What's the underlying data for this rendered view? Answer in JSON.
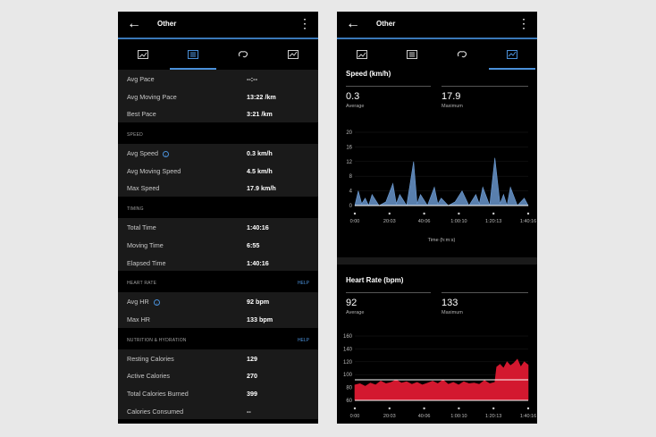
{
  "left": {
    "title": "Other",
    "rows_top": [
      {
        "label": "Avg Pace",
        "value": "--:--"
      },
      {
        "label": "Avg Moving Pace",
        "value": "13:22 /km"
      },
      {
        "label": "Best Pace",
        "value": "3:21 /km"
      }
    ],
    "speed": {
      "header": "SPEED",
      "rows": [
        {
          "label": "Avg Speed",
          "value": "0.3 km/h"
        },
        {
          "label": "Avg Moving Speed",
          "value": "4.5 km/h"
        },
        {
          "label": "Max Speed",
          "value": "17.9 km/h"
        }
      ]
    },
    "timing": {
      "header": "TIMING",
      "rows": [
        {
          "label": "Total Time",
          "value": "1:40:16"
        },
        {
          "label": "Moving Time",
          "value": "6:55"
        },
        {
          "label": "Elapsed Time",
          "value": "1:40:16"
        }
      ]
    },
    "heart": {
      "header": "HEART RATE",
      "help": "HELP",
      "rows": [
        {
          "label": "Avg HR",
          "value": "92 bpm"
        },
        {
          "label": "Max HR",
          "value": "133 bpm"
        }
      ]
    },
    "nutrition": {
      "header": "NUTRITION & HYDRATION",
      "help": "HELP",
      "rows": [
        {
          "label": "Resting Calories",
          "value": "129"
        },
        {
          "label": "Active Calories",
          "value": "270"
        },
        {
          "label": "Total Calories Burned",
          "value": "399"
        },
        {
          "label": "Calories Consumed",
          "value": "--"
        }
      ]
    }
  },
  "right": {
    "title": "Other",
    "speed_chart": {
      "title": "Speed (km/h)",
      "avg_value": "0.3",
      "avg_label": "Average",
      "max_value": "17.9",
      "max_label": "Maximum"
    },
    "hr_chart": {
      "title": "Heart Rate (bpm)",
      "avg_value": "92",
      "avg_label": "Average",
      "max_value": "133",
      "max_label": "Maximum"
    }
  },
  "colors": {
    "accent": "#4a90d9",
    "speed_series": "#6f9fd8",
    "hr_series": "#d3182f"
  },
  "chart_data": [
    {
      "type": "area",
      "title": "Speed (km/h)",
      "xlabel": "Time (h:m:s)",
      "x_ticks": [
        "0:00",
        "20:03",
        "40:06",
        "1:00:10",
        "1:20:13",
        "1:40:16"
      ],
      "y_ticks": [
        0,
        4,
        8,
        12,
        16,
        20
      ],
      "ylim": [
        0,
        20
      ],
      "xlim_min": [
        0,
        100.27
      ],
      "series": [
        {
          "x": [
            0,
            2,
            4,
            6,
            8,
            10,
            14,
            18,
            22,
            24,
            26,
            30,
            34,
            36,
            38,
            42,
            46,
            48,
            50,
            54,
            58,
            62,
            66,
            70,
            72,
            74,
            78,
            81,
            84,
            86,
            88,
            90,
            94,
            98,
            100.27
          ],
          "values": [
            0,
            4,
            0.5,
            2,
            0,
            3,
            0,
            1,
            6,
            0.5,
            3,
            0,
            12,
            0.5,
            3,
            0,
            5,
            0.5,
            2,
            0,
            1,
            4,
            0,
            3,
            0.5,
            5,
            0,
            13,
            0.5,
            3,
            0,
            5,
            0,
            2,
            0
          ]
        }
      ]
    },
    {
      "type": "area",
      "title": "Heart Rate (bpm)",
      "x_ticks": [
        "0:00",
        "20:03",
        "40:06",
        "1:00:10",
        "1:20:13",
        "1:40:16"
      ],
      "y_ticks": [
        60,
        80,
        100,
        120,
        140,
        160
      ],
      "ylim": [
        60,
        160
      ],
      "average_line": 92,
      "series": [
        {
          "x": [
            0,
            3,
            6,
            9,
            12,
            15,
            18,
            21,
            24,
            27,
            30,
            33,
            36,
            39,
            42,
            45,
            48,
            51,
            54,
            57,
            60,
            63,
            66,
            69,
            72,
            75,
            78,
            81,
            82,
            84,
            86,
            88,
            90,
            92,
            94,
            96,
            98,
            100.27
          ],
          "values": [
            84,
            86,
            82,
            87,
            84,
            90,
            86,
            88,
            92,
            87,
            89,
            85,
            88,
            84,
            87,
            90,
            86,
            92,
            85,
            88,
            84,
            89,
            86,
            87,
            85,
            91,
            86,
            88,
            112,
            116,
            110,
            120,
            114,
            118,
            124,
            112,
            120,
            115
          ]
        }
      ]
    }
  ]
}
